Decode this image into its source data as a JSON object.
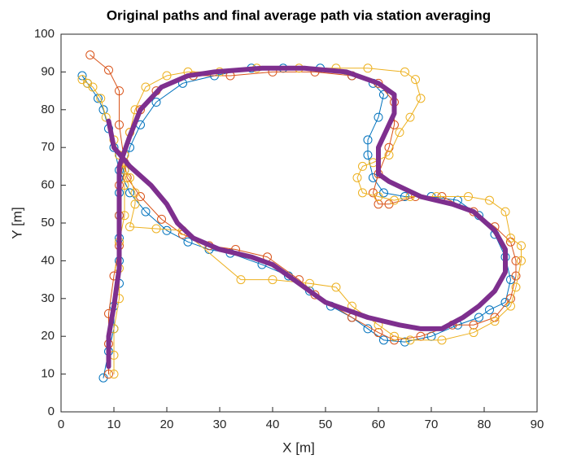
{
  "chart_data": {
    "type": "line",
    "title": "Original paths and final average path via station averaging",
    "x_label": "X [m]",
    "y_label": "Y [m]",
    "xlim": [
      0,
      90
    ],
    "ylim": [
      0,
      100
    ],
    "xticks": [
      0,
      10,
      20,
      30,
      40,
      50,
      60,
      70,
      80,
      90
    ],
    "yticks": [
      0,
      10,
      20,
      30,
      40,
      50,
      60,
      70,
      80,
      90,
      100
    ],
    "grid": false,
    "box": true,
    "series": [
      {
        "color": "#0072BD",
        "marker": "o",
        "line_width": 1,
        "x": [
          4,
          5,
          7,
          8,
          9,
          10,
          11,
          13,
          16,
          20,
          24,
          28,
          32,
          38,
          43,
          47,
          51,
          55,
          58,
          61,
          65,
          70,
          75,
          79,
          81,
          84,
          85,
          84,
          82,
          79,
          75,
          70,
          65,
          61,
          59,
          58,
          58,
          60,
          61,
          59,
          55,
          49,
          42,
          36,
          29,
          23,
          18,
          15,
          13,
          12,
          11,
          11,
          11,
          11,
          11,
          10,
          10,
          9,
          8
        ],
        "values": [
          89,
          87,
          83,
          80,
          75,
          70,
          64,
          58,
          53,
          48,
          45,
          43,
          42,
          39,
          36,
          32,
          28,
          25,
          22,
          19,
          18.5,
          20,
          23,
          25,
          27,
          29,
          35,
          41,
          47,
          52,
          56,
          57,
          57,
          58,
          62,
          68,
          72,
          78,
          84,
          87,
          89,
          91,
          91,
          91,
          89,
          87,
          82,
          76,
          70,
          64,
          58,
          52,
          46,
          40,
          34,
          28,
          22,
          16,
          9
        ]
      },
      {
        "color": "#D95319",
        "marker": "o",
        "line_width": 1,
        "x": [
          5.5,
          9,
          11,
          11,
          12,
          12.5,
          15,
          19,
          23,
          28,
          33,
          39,
          45,
          48,
          55,
          60,
          63,
          68,
          74,
          78,
          82,
          85,
          86,
          86,
          85,
          82,
          78,
          72,
          67,
          62,
          60,
          59,
          60,
          62,
          63,
          63,
          60,
          55,
          48,
          40,
          32,
          25,
          18,
          15,
          13,
          12,
          11,
          11,
          11,
          10,
          9,
          9,
          9
        ],
        "values": [
          94.5,
          90.5,
          85,
          76,
          66,
          62,
          57,
          51,
          47,
          44,
          43,
          41,
          35,
          31,
          25,
          21,
          19,
          20,
          23,
          23,
          25,
          30,
          36,
          40,
          45,
          49,
          53,
          57,
          57,
          55,
          55,
          58,
          63,
          70,
          76,
          82,
          87,
          89,
          90,
          90,
          89,
          89,
          85,
          80,
          74,
          68,
          60,
          52,
          44,
          36,
          26,
          18,
          10
        ]
      },
      {
        "color": "#EDB120",
        "marker": "o",
        "line_width": 1,
        "x": [
          4,
          5,
          6,
          7.5,
          8.5,
          10,
          11,
          12,
          13,
          14,
          14,
          13,
          18,
          23,
          34,
          40,
          47,
          52,
          55,
          60,
          63,
          66,
          72,
          78,
          82,
          85,
          86,
          87,
          87,
          85,
          84,
          81,
          77,
          71,
          66,
          63,
          60,
          57,
          56,
          57,
          59,
          62,
          64,
          66,
          68,
          67,
          65,
          58,
          52,
          45,
          37,
          30,
          24,
          20,
          16,
          14,
          13,
          12,
          12,
          12,
          11,
          11,
          11,
          10,
          10,
          10
        ],
        "values": [
          88,
          87,
          86,
          83,
          78,
          72,
          68,
          64,
          62,
          58,
          55,
          49,
          48.5,
          48,
          35,
          35,
          34,
          33,
          28,
          23,
          20,
          19,
          19,
          21,
          24,
          28,
          33,
          40,
          44,
          46,
          53,
          56,
          57,
          57,
          57,
          56,
          57,
          58,
          62,
          65,
          66,
          68,
          74,
          78,
          83,
          88,
          90,
          91,
          91,
          91,
          91,
          90,
          90,
          89,
          86,
          80,
          74,
          68,
          60,
          52,
          45,
          38,
          30,
          22,
          15,
          10
        ]
      },
      {
        "color": "#7E2F8E",
        "line_width": 6,
        "x": [
          9,
          10,
          13,
          17,
          20,
          22,
          25,
          30,
          36,
          40,
          45,
          50,
          58,
          64,
          68,
          72,
          76,
          79,
          82,
          84,
          84,
          82,
          78,
          74,
          68,
          62,
          60,
          60,
          63,
          63,
          60,
          54,
          46,
          38,
          29,
          24,
          19,
          15,
          13,
          11,
          11,
          11,
          11,
          10,
          9,
          9
        ],
        "values": [
          77,
          70,
          65,
          60,
          55,
          50,
          46,
          43,
          41,
          39,
          34,
          29,
          25,
          23,
          22,
          22,
          25,
          28,
          32,
          37,
          43,
          48,
          53,
          55,
          57,
          61,
          63,
          70,
          79,
          84,
          87,
          90,
          91,
          91,
          90,
          89,
          86,
          80,
          73,
          65,
          57,
          48,
          38,
          28,
          20,
          12
        ]
      }
    ]
  }
}
